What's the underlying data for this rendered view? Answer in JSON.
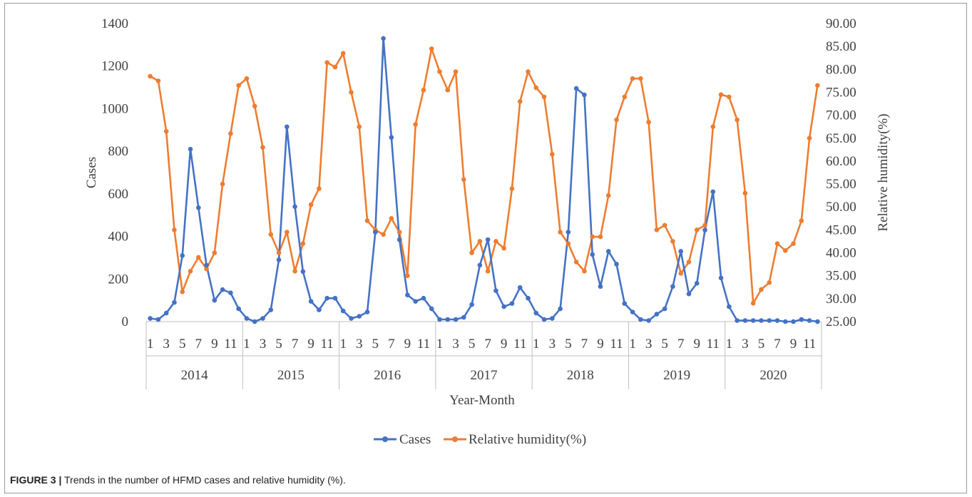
{
  "figure": {
    "label": "FIGURE 3 |",
    "caption": "Trends in the number of HFMD cases and relative humidity (%)."
  },
  "chart_data": {
    "type": "line",
    "xlabel": "Year-Month",
    "ylabel_left": "Cases",
    "ylabel_right": "Relative humidity(%)",
    "ylim_left": [
      0,
      1400
    ],
    "ylim_right": [
      25,
      90
    ],
    "yticks_left": [
      "0",
      "200",
      "400",
      "600",
      "800",
      "1000",
      "1200",
      "1400"
    ],
    "yticks_right": [
      "25.00",
      "30.00",
      "35.00",
      "40.00",
      "45.00",
      "50.00",
      "55.00",
      "60.00",
      "65.00",
      "70.00",
      "75.00",
      "80.00",
      "85.00",
      "90.00"
    ],
    "years": [
      "2014",
      "2015",
      "2016",
      "2017",
      "2018",
      "2019",
      "2020"
    ],
    "month_tick_labels": [
      "1",
      "3",
      "5",
      "7",
      "9",
      "11"
    ],
    "legend_position": "bottom",
    "colors": {
      "cases": "#4472c4",
      "humidity": "#ed7d31"
    },
    "series": [
      {
        "name": "Cases",
        "axis": "left",
        "values": [
          15,
          10,
          40,
          90,
          310,
          810,
          535,
          265,
          100,
          150,
          135,
          60,
          15,
          0,
          15,
          55,
          290,
          915,
          540,
          235,
          95,
          55,
          110,
          110,
          50,
          15,
          25,
          45,
          420,
          1330,
          865,
          385,
          125,
          95,
          110,
          60,
          10,
          10,
          10,
          20,
          80,
          265,
          385,
          145,
          70,
          85,
          160,
          110,
          40,
          10,
          15,
          60,
          420,
          1095,
          1065,
          315,
          165,
          330,
          270,
          85,
          45,
          10,
          5,
          35,
          60,
          165,
          330,
          130,
          180,
          430,
          610,
          205,
          70,
          5,
          5,
          5,
          5,
          5,
          5,
          0,
          0,
          10,
          5,
          0
        ]
      },
      {
        "name": "Relative humidity(%)",
        "axis": "right",
        "values": [
          78.5,
          77.5,
          66.5,
          45.0,
          31.5,
          36.0,
          39.0,
          36.5,
          40.0,
          55.0,
          66.0,
          76.5,
          78.0,
          72.0,
          63.0,
          44.0,
          40.0,
          44.5,
          36.0,
          42.0,
          50.5,
          54.0,
          81.5,
          80.5,
          83.5,
          75.0,
          67.5,
          47.0,
          45.0,
          44.0,
          47.5,
          44.5,
          35.0,
          68.0,
          75.5,
          84.5,
          79.5,
          75.5,
          79.5,
          56.0,
          40.0,
          42.5,
          36.0,
          42.5,
          41.0,
          54.0,
          73.0,
          79.5,
          76.0,
          74.0,
          61.5,
          44.5,
          42.0,
          38.0,
          36.0,
          43.5,
          43.5,
          52.5,
          69.0,
          74.0,
          78.0,
          78.0,
          68.5,
          45.0,
          46.0,
          42.5,
          35.5,
          38.0,
          45.0,
          46.0,
          67.5,
          74.5,
          74.0,
          69.0,
          53.0,
          29.0,
          32.0,
          33.5,
          42.0,
          40.5,
          42.0,
          47.0,
          65.0,
          76.5
        ]
      }
    ]
  }
}
